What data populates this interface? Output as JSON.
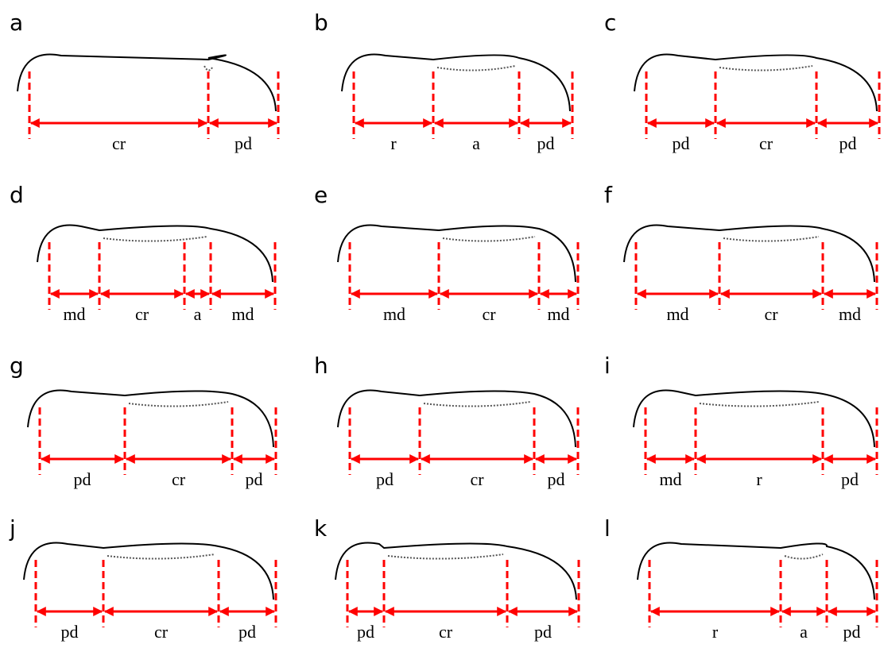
{
  "panels": [
    {
      "letter": "a",
      "segments": [
        "cr",
        "pd"
      ]
    },
    {
      "letter": "b",
      "segments": [
        "r",
        "a",
        "pd"
      ]
    },
    {
      "letter": "c",
      "segments": [
        "pd",
        "cr",
        "pd"
      ]
    },
    {
      "letter": "d",
      "segments": [
        "md",
        "cr",
        "a",
        "md"
      ]
    },
    {
      "letter": "e",
      "segments": [
        "md",
        "cr",
        "md"
      ]
    },
    {
      "letter": "f",
      "segments": [
        "md",
        "cr",
        "md"
      ]
    },
    {
      "letter": "g",
      "segments": [
        "pd",
        "cr",
        "pd"
      ]
    },
    {
      "letter": "h",
      "segments": [
        "pd",
        "cr",
        "pd"
      ]
    },
    {
      "letter": "i",
      "segments": [
        "md",
        "r",
        "pd"
      ]
    },
    {
      "letter": "j",
      "segments": [
        "pd",
        "cr",
        "pd"
      ]
    },
    {
      "letter": "k",
      "segments": [
        "pd",
        "cr",
        "pd"
      ]
    },
    {
      "letter": "l",
      "segments": [
        "r",
        "a",
        "pd"
      ]
    }
  ]
}
